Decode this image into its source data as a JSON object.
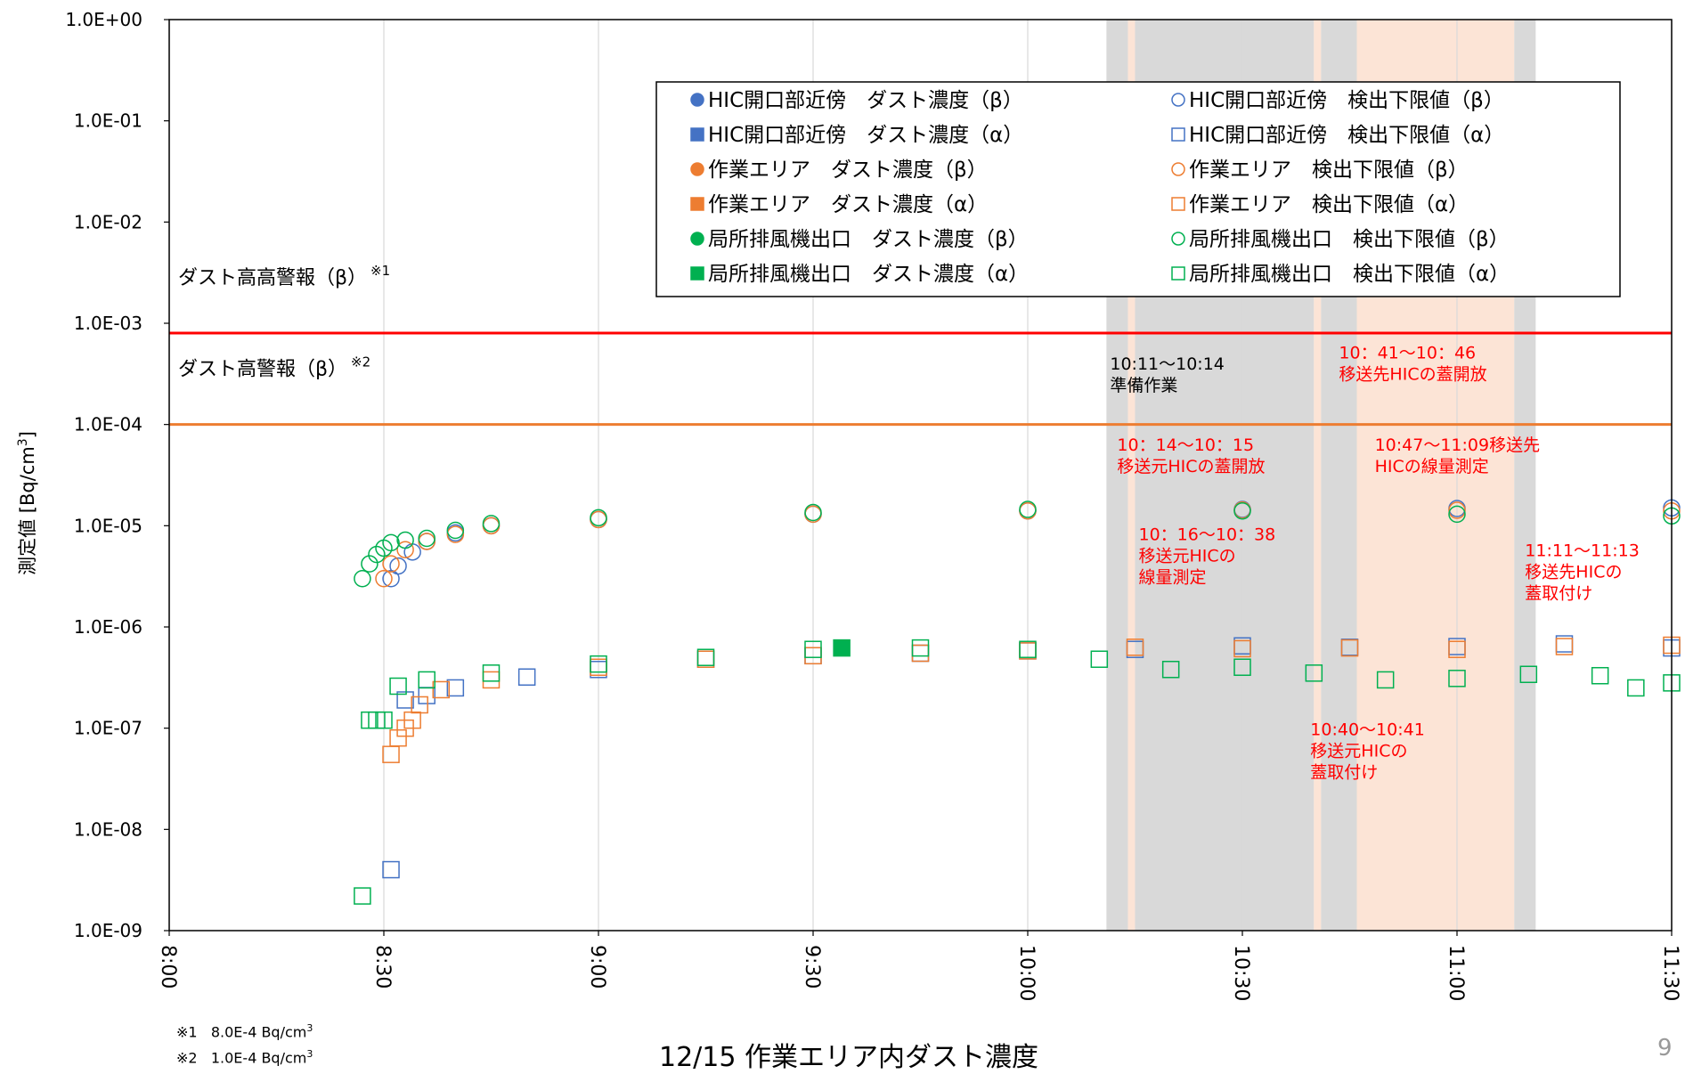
{
  "chart_data": {
    "type": "scatter",
    "y_scale": "log",
    "ylim": [
      1e-09,
      1
    ],
    "y_ticks": [
      "1.0E-09",
      "1.0E-08",
      "1.0E-07",
      "1.0E-06",
      "1.0E-05",
      "1.0E-04",
      "1.0E-03",
      "1.0E-02",
      "1.0E-01",
      "1.0E+00"
    ],
    "x_ticks": [
      "8:00",
      "8:30",
      "9:00",
      "9:30",
      "10:00",
      "10:30",
      "11:00",
      "11:30"
    ],
    "xlim": [
      "8:00",
      "11:30"
    ],
    "grid": "vertical",
    "ylabel": "測定値 [Bq/cm",
    "ylabel_sup": "3",
    "ylabel_end": "]",
    "legend_position": "top-right",
    "alarm_lines": [
      {
        "label": "ダスト高高警報（β）",
        "mark": "※1",
        "value": 0.0008,
        "color": "#ff0000"
      },
      {
        "label": "ダスト高警報（β）",
        "mark": "※2",
        "value": 0.0001,
        "color": "#ed7d31"
      }
    ],
    "bands": [
      {
        "start": "10:11",
        "end": "10:14",
        "color": "#d9d9d9"
      },
      {
        "start": "10:14",
        "end": "10:15",
        "color": "#fce4d6"
      },
      {
        "start": "10:15",
        "end": "10:40",
        "color": "#d9d9d9"
      },
      {
        "start": "10:40",
        "end": "10:41",
        "color": "#fce4d6"
      },
      {
        "start": "10:41",
        "end": "10:46",
        "color": "#d9d9d9"
      },
      {
        "start": "10:46",
        "end": "11:08",
        "color": "#fce4d6"
      },
      {
        "start": "11:08",
        "end": "11:11",
        "color": "#d9d9d9"
      }
    ],
    "annotations": [
      {
        "lines": [
          "10:11～10:14",
          "準備作業"
        ],
        "time": "10:11",
        "level": 0.00035,
        "color": "black"
      },
      {
        "lines": [
          "10：41～10：46",
          "移送先HICの蓋開放"
        ],
        "time": "10:43",
        "level": 0.00045,
        "color": "red"
      },
      {
        "lines": [
          "10：14～10：15",
          "移送元HICの蓋開放"
        ],
        "time": "10:12",
        "level": 5.5e-05,
        "color": "red"
      },
      {
        "lines": [
          "10:47～11:09移送先",
          "HICの線量測定"
        ],
        "time": "10:48",
        "level": 5.5e-05,
        "color": "red"
      },
      {
        "lines": [
          "10：16～10：38",
          "移送元HICの",
          "線量測定"
        ],
        "time": "10:15",
        "level": 7.2e-06,
        "color": "red"
      },
      {
        "lines": [
          "11:11～11:13",
          "移送先HICの",
          "蓋取付け"
        ],
        "time": "11:09",
        "level": 5e-06,
        "color": "red"
      },
      {
        "lines": [
          "10:40～10:41",
          "移送元HICの",
          "蓋取付け"
        ],
        "time": "10:39",
        "level": 8.5e-08,
        "color": "red"
      }
    ],
    "series": [
      {
        "name": "HIC開口部近傍　ダスト濃度（β）",
        "marker": "circle",
        "filled": true,
        "color": "#4472c4",
        "points": []
      },
      {
        "name": "HIC開口部近傍　検出下限値（β）",
        "marker": "circle",
        "filled": false,
        "color": "#4472c4",
        "points": [
          [
            "8:31",
            3e-06
          ],
          [
            "8:32",
            4e-06
          ],
          [
            "8:34",
            5.5e-06
          ],
          [
            "8:36",
            7e-06
          ],
          [
            "8:40",
            8.5e-06
          ],
          [
            "8:45",
            1e-05
          ],
          [
            "9:00",
            1.15e-05
          ],
          [
            "9:30",
            1.3e-05
          ],
          [
            "10:00",
            1.4e-05
          ],
          [
            "10:30",
            1.45e-05
          ],
          [
            "11:00",
            1.48e-05
          ],
          [
            "11:30",
            1.5e-05
          ]
        ]
      },
      {
        "name": "HIC開口部近傍　ダスト濃度（α）",
        "marker": "square",
        "filled": true,
        "color": "#4472c4",
        "points": []
      },
      {
        "name": "HIC開口部近傍　検出下限値（α）",
        "marker": "square",
        "filled": false,
        "color": "#4472c4",
        "points": [
          [
            "8:31",
            4e-09
          ],
          [
            "8:33",
            1.9e-07
          ],
          [
            "8:36",
            2.1e-07
          ],
          [
            "8:40",
            2.5e-07
          ],
          [
            "8:50",
            3.2e-07
          ],
          [
            "9:00",
            3.8e-07
          ],
          [
            "9:15",
            4.8e-07
          ],
          [
            "9:30",
            5.2e-07
          ],
          [
            "9:45",
            5.5e-07
          ],
          [
            "10:00",
            5.8e-07
          ],
          [
            "10:15",
            6e-07
          ],
          [
            "10:30",
            6.5e-07
          ],
          [
            "10:45",
            6.3e-07
          ],
          [
            "11:00",
            6.4e-07
          ],
          [
            "11:15",
            6.8e-07
          ],
          [
            "11:30",
            6.2e-07
          ]
        ]
      },
      {
        "name": "作業エリア　ダスト濃度（β）",
        "marker": "circle",
        "filled": true,
        "color": "#ed7d31",
        "points": []
      },
      {
        "name": "作業エリア　検出下限値（β）",
        "marker": "circle",
        "filled": false,
        "color": "#ed7d31",
        "points": [
          [
            "8:30",
            3e-06
          ],
          [
            "8:31",
            4.2e-06
          ],
          [
            "8:33",
            5.8e-06
          ],
          [
            "8:36",
            7e-06
          ],
          [
            "8:40",
            8.2e-06
          ],
          [
            "8:45",
            1e-05
          ],
          [
            "9:00",
            1.15e-05
          ],
          [
            "9:30",
            1.3e-05
          ],
          [
            "10:00",
            1.4e-05
          ],
          [
            "10:30",
            1.43e-05
          ],
          [
            "11:00",
            1.42e-05
          ],
          [
            "11:30",
            1.4e-05
          ]
        ]
      },
      {
        "name": "作業エリア　ダスト濃度（α）",
        "marker": "square",
        "filled": true,
        "color": "#ed7d31",
        "points": []
      },
      {
        "name": "作業エリア　検出下限値（α）",
        "marker": "square",
        "filled": false,
        "color": "#ed7d31",
        "points": [
          [
            "8:31",
            5.5e-08
          ],
          [
            "8:32",
            8e-08
          ],
          [
            "8:33",
            1e-07
          ],
          [
            "8:34",
            1.2e-07
          ],
          [
            "8:35",
            1.7e-07
          ],
          [
            "8:38",
            2.4e-07
          ],
          [
            "8:45",
            3e-07
          ],
          [
            "9:00",
            4e-07
          ],
          [
            "9:15",
            4.8e-07
          ],
          [
            "9:30",
            5.2e-07
          ],
          [
            "9:45",
            5.5e-07
          ],
          [
            "10:00",
            5.8e-07
          ],
          [
            "10:15",
            6.3e-07
          ],
          [
            "10:30",
            6.1e-07
          ],
          [
            "10:45",
            6.2e-07
          ],
          [
            "11:00",
            6e-07
          ],
          [
            "11:15",
            6.4e-07
          ],
          [
            "11:30",
            6.6e-07
          ]
        ]
      },
      {
        "name": "局所排風機出口　ダスト濃度（β）",
        "marker": "circle",
        "filled": true,
        "color": "#00b050",
        "points": []
      },
      {
        "name": "局所排風機出口　検出下限値（β）",
        "marker": "circle",
        "filled": false,
        "color": "#00b050",
        "points": [
          [
            "8:27",
            3e-06
          ],
          [
            "8:28",
            4.2e-06
          ],
          [
            "8:29",
            5.2e-06
          ],
          [
            "8:30",
            6e-06
          ],
          [
            "8:31",
            6.8e-06
          ],
          [
            "8:33",
            7.2e-06
          ],
          [
            "8:36",
            7.5e-06
          ],
          [
            "8:40",
            9e-06
          ],
          [
            "8:45",
            1.05e-05
          ],
          [
            "9:00",
            1.2e-05
          ],
          [
            "9:30",
            1.35e-05
          ],
          [
            "10:00",
            1.45e-05
          ],
          [
            "10:30",
            1.4e-05
          ],
          [
            "11:00",
            1.3e-05
          ],
          [
            "11:30",
            1.25e-05
          ]
        ]
      },
      {
        "name": "局所排風機出口　ダスト濃度（α）",
        "marker": "square",
        "filled": true,
        "color": "#00b050",
        "points": [
          [
            "9:34",
            6.2e-07
          ]
        ]
      },
      {
        "name": "局所排風機出口　検出下限値（α）",
        "marker": "square",
        "filled": false,
        "color": "#00b050",
        "points": [
          [
            "8:27",
            2.2e-09
          ],
          [
            "8:28",
            1.2e-07
          ],
          [
            "8:29",
            1.2e-07
          ],
          [
            "8:30",
            1.2e-07
          ],
          [
            "8:32",
            2.6e-07
          ],
          [
            "8:36",
            3e-07
          ],
          [
            "8:45",
            3.5e-07
          ],
          [
            "9:00",
            4.3e-07
          ],
          [
            "9:15",
            5e-07
          ],
          [
            "9:30",
            6e-07
          ],
          [
            "9:45",
            6.2e-07
          ],
          [
            "10:00",
            6e-07
          ],
          [
            "10:10",
            4.8e-07
          ],
          [
            "10:20",
            3.8e-07
          ],
          [
            "10:30",
            4e-07
          ],
          [
            "10:40",
            3.5e-07
          ],
          [
            "10:50",
            3e-07
          ],
          [
            "11:00",
            3.1e-07
          ],
          [
            "11:10",
            3.4e-07
          ],
          [
            "11:20",
            3.3e-07
          ],
          [
            "11:25",
            2.5e-07
          ],
          [
            "11:30",
            2.8e-07
          ]
        ]
      }
    ]
  },
  "footnotes": {
    "n1_mark": "※1",
    "n1_value": "8.0E-4 Bq/cm",
    "n1_sup": "3",
    "n2_mark": "※2",
    "n2_value": "1.0E-4 Bq/cm",
    "n2_sup": "3"
  },
  "caption": "12/15 作業エリア内ダスト濃度",
  "page_number": "9"
}
